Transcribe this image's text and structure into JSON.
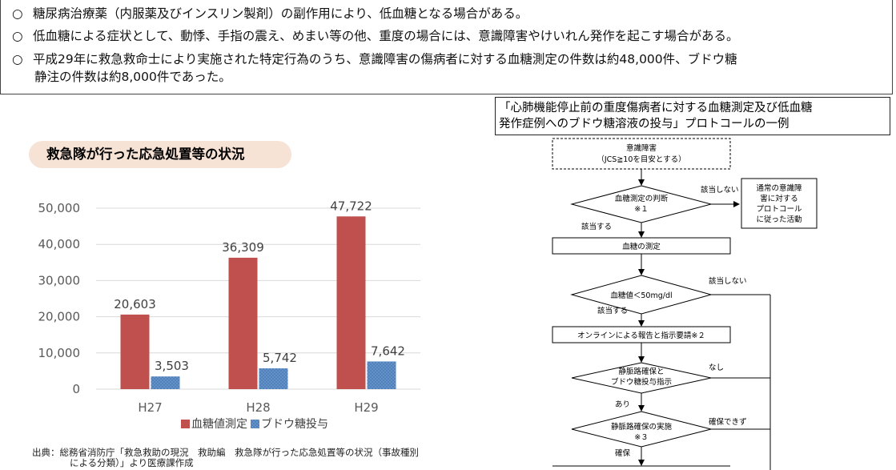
{
  "bullets": [
    {
      "mark": "○",
      "text": "糖尿病治療薬（内服薬及びインスリン製剤）の副作用により、低血糖となる場合がある。"
    },
    {
      "mark": "○",
      "text": "低血糖による症状として、動悸、手指の震え、めまい等の他、重度の場合には、意識障害やけいれん発作を起こす場合がある。"
    },
    {
      "mark": "○",
      "text": "平成29年に救急救命士により実施された特定行為のうち、意識障害の傷病者に対する血糖測定の件数は約48,000件、ブドウ糖",
      "continuation": "静注の件数は約8,000件であった。"
    }
  ],
  "chart_title": "救急隊が行った応急処置等の状況",
  "chart_data": {
    "type": "bar",
    "categories": [
      "H27",
      "H28",
      "H29"
    ],
    "series": [
      {
        "name": "血糖値測定",
        "values": [
          20603,
          36309,
          47722
        ],
        "labels": [
          "20,603",
          "36,309",
          "47,722"
        ],
        "color": "#c0504d"
      },
      {
        "name": "ブドウ糖投与",
        "values": [
          3503,
          5742,
          7642
        ],
        "labels": [
          "3,503",
          "5,742",
          "7,642"
        ],
        "color": "#4f81bd"
      }
    ],
    "ylim": [
      0,
      50000
    ],
    "yticks": [
      "0",
      "10,000",
      "20,000",
      "30,000",
      "40,000",
      "50,000"
    ],
    "ytick_values": [
      0,
      10000,
      20000,
      30000,
      40000,
      50000
    ],
    "grid": true,
    "legend": "bottom"
  },
  "source": {
    "line1": "出典：総務省消防庁「救急救助の現況　救助編　救急隊が行った応急処置等の状況（事故種別",
    "line2": "による分類）」より医療課作成"
  },
  "protocol": {
    "title_line1": "「心肺機能停止前の重度傷病者に対する血糖測定及び低血糖",
    "title_line2": "発作症例へのブドウ糖溶液の投与」プロトコールの一例",
    "nodes": {
      "start_l1": "意識障害",
      "start_l2": "（JCS≧10を目安とする）",
      "d1_l1": "血糖測定の判断",
      "d1_l2": "※１",
      "no1": "該当しない",
      "side_l1": "通常の意識障",
      "side_l2": "害に対する",
      "side_l3": "プロトコール",
      "side_l4": "に従った活動",
      "yes1": "該当する",
      "measure": "血糖の測定",
      "d2": "血糖値＜50mg/dl",
      "no2": "該当しない",
      "yes2": "該当する",
      "online": "オンラインによる報告と指示要請※２",
      "d3_l1": "静脈路確保と",
      "d3_l2": "ブドウ糖投与指示",
      "no3": "なし",
      "yes3": "あり",
      "d4_l1": "静脈路確保の実施",
      "d4_l2": "※３",
      "no4": "確保できず",
      "yes4": "確保"
    }
  }
}
